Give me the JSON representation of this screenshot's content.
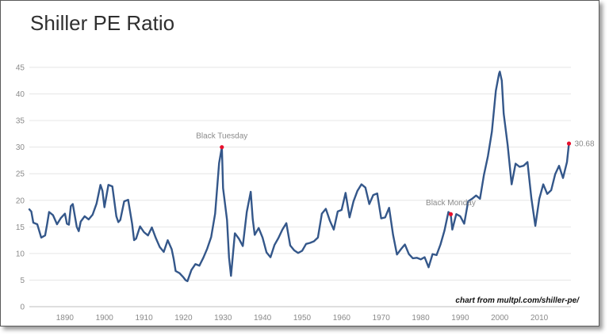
{
  "chart_data": {
    "type": "line",
    "title": "Shiller PE Ratio",
    "credit": "chart from multpl.com/shiller-pe/",
    "xlim": [
      1881,
      2018
    ],
    "ylim": [
      0,
      45
    ],
    "yticks": [
      0,
      5,
      10,
      15,
      20,
      25,
      30,
      35,
      40,
      45
    ],
    "xticks": [
      1890,
      1900,
      1910,
      1920,
      1930,
      1940,
      1950,
      1960,
      1970,
      1980,
      1990,
      2000,
      2010
    ],
    "grid": true,
    "legend": "none",
    "line_color": "#34578a",
    "marker_color": "#e8112d",
    "series": [
      {
        "x": [
          1881,
          1881.5,
          1882,
          1883,
          1884,
          1885,
          1885.5,
          1886,
          1887,
          1888,
          1889,
          1890,
          1890.5,
          1891,
          1891.5,
          1892,
          1893,
          1893.5,
          1894,
          1895,
          1896,
          1897,
          1898,
          1899,
          1899.5,
          1900,
          1901,
          1902,
          1903,
          1903.5,
          1904,
          1905,
          1906,
          1907,
          1907.5,
          1908,
          1909,
          1910,
          1911,
          1912,
          1913,
          1914,
          1915,
          1916,
          1917,
          1917.5,
          1918,
          1919,
          1920,
          1920.5,
          1921,
          1922,
          1923,
          1924,
          1925,
          1926,
          1927,
          1928,
          1929,
          1929.7,
          1930,
          1931,
          1931.5,
          1932,
          1933,
          1934,
          1935,
          1936,
          1937,
          1937.5,
          1938,
          1939,
          1940,
          1941,
          1942,
          1943,
          1944,
          1945,
          1946,
          1947,
          1948,
          1949,
          1950,
          1951,
          1952,
          1953,
          1954,
          1955,
          1956,
          1957,
          1958,
          1959,
          1960,
          1961,
          1962,
          1963,
          1964,
          1965,
          1966,
          1967,
          1968,
          1969,
          1970,
          1971,
          1972,
          1973,
          1974,
          1975,
          1976,
          1977,
          1978,
          1979,
          1980,
          1981,
          1982,
          1983,
          1984,
          1985,
          1986,
          1987,
          1987.6,
          1988,
          1989,
          1990,
          1991,
          1992,
          1993,
          1994,
          1995,
          1996,
          1997,
          1998,
          1999,
          1999.8,
          2000,
          2000.5,
          2001,
          2002,
          2003,
          2004,
          2005,
          2006,
          2007,
          2008,
          2009,
          2010,
          2011,
          2012,
          2013,
          2014,
          2015,
          2016,
          2017,
          2017.5
        ],
        "y": [
          18.3,
          17.9,
          15.8,
          15.5,
          13.0,
          13.4,
          15.5,
          17.8,
          17.2,
          15.5,
          16.7,
          17.5,
          15.6,
          15.4,
          18.9,
          19.3,
          15.0,
          14.2,
          16.0,
          17.0,
          16.4,
          17.3,
          19.4,
          22.9,
          21.8,
          18.7,
          22.9,
          22.6,
          17.0,
          15.9,
          16.3,
          19.8,
          20.1,
          15.6,
          12.5,
          12.8,
          15.1,
          14.0,
          13.4,
          14.9,
          12.9,
          11.2,
          10.3,
          12.5,
          10.8,
          9.0,
          6.7,
          6.3,
          5.5,
          5.0,
          4.8,
          6.9,
          8.0,
          7.7,
          9.2,
          10.9,
          13.1,
          17.5,
          27.0,
          30.0,
          22.3,
          16.3,
          9.3,
          5.8,
          13.8,
          12.8,
          11.4,
          17.8,
          21.6,
          16.5,
          13.5,
          14.8,
          13.0,
          10.2,
          9.3,
          11.6,
          12.9,
          14.5,
          15.7,
          11.5,
          10.6,
          10.1,
          10.5,
          11.8,
          12.0,
          12.3,
          13.0,
          17.5,
          18.4,
          16.2,
          14.5,
          17.9,
          18.2,
          21.4,
          16.8,
          19.8,
          21.8,
          23.0,
          22.4,
          19.3,
          21.0,
          21.3,
          16.6,
          16.8,
          18.6,
          13.5,
          9.8,
          10.8,
          11.7,
          9.9,
          9.1,
          9.2,
          8.9,
          9.3,
          7.4,
          9.9,
          9.7,
          11.7,
          14.3,
          17.8,
          17.4,
          14.5,
          17.4,
          17.0,
          15.6,
          19.8,
          20.3,
          20.9,
          20.3,
          24.8,
          28.3,
          32.9,
          40.6,
          43.8,
          44.2,
          42.5,
          36.3,
          30.4,
          23.0,
          26.9,
          26.3,
          26.5,
          27.2,
          20.4,
          15.2,
          20.3,
          23.0,
          21.2,
          21.9,
          24.9,
          26.5,
          24.2,
          27.2,
          30.68
        ]
      }
    ],
    "annotations": [
      {
        "label": "Black Tuesday",
        "x": 1929.7,
        "y": 30.0
      },
      {
        "label": "Black Monday",
        "x": 1987.6,
        "y": 17.4
      },
      {
        "label": "30.68",
        "x": 2017.5,
        "y": 30.68
      }
    ]
  }
}
